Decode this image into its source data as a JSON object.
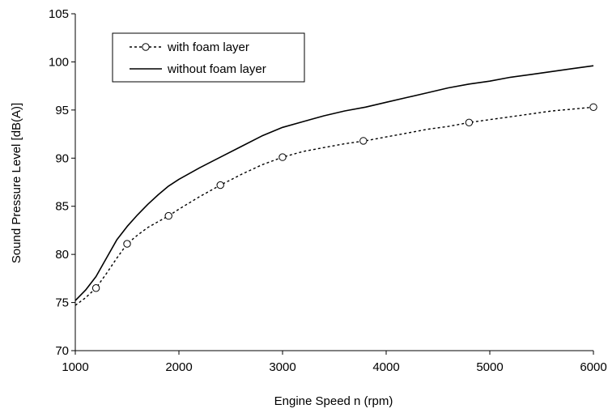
{
  "chart_data": {
    "type": "line",
    "title": "",
    "xlabel": "Engine Speed n (rpm)",
    "ylabel": "Sound Pressure Level [dB(A)]",
    "xlim": [
      1000,
      6000
    ],
    "ylim": [
      70,
      105
    ],
    "xticks": [
      1000,
      2000,
      3000,
      4000,
      5000,
      6000
    ],
    "yticks": [
      70,
      75,
      80,
      85,
      90,
      95,
      100,
      105
    ],
    "grid": false,
    "legend_position": "top-left",
    "series": [
      {
        "name": "with foam layer",
        "style": "dotted-with-circle-markers",
        "color": "#000000",
        "x": [
          1000,
          1100,
          1200,
          1300,
          1400,
          1500,
          1600,
          1700,
          1800,
          1900,
          2000,
          2200,
          2400,
          2600,
          2800,
          3000,
          3200,
          3400,
          3600,
          3800,
          4000,
          4200,
          4400,
          4600,
          4800,
          5000,
          5200,
          5400,
          5600,
          5800,
          6000
        ],
        "y": [
          74.7,
          75.5,
          76.5,
          78.0,
          79.6,
          81.1,
          82.0,
          82.8,
          83.4,
          84.0,
          84.7,
          86.0,
          87.2,
          88.3,
          89.3,
          90.1,
          90.7,
          91.1,
          91.5,
          91.8,
          92.2,
          92.6,
          93.0,
          93.3,
          93.7,
          94.0,
          94.3,
          94.6,
          94.9,
          95.1,
          95.3
        ],
        "marker_x": [
          1200,
          1500,
          1900,
          2400,
          3000,
          3780,
          4800,
          6000
        ],
        "marker_y": [
          76.5,
          81.1,
          84.0,
          87.2,
          90.1,
          91.8,
          93.7,
          95.3
        ]
      },
      {
        "name": "without foam layer",
        "style": "solid",
        "color": "#000000",
        "x": [
          1000,
          1100,
          1200,
          1300,
          1400,
          1500,
          1600,
          1700,
          1800,
          1900,
          2000,
          2200,
          2400,
          2600,
          2800,
          3000,
          3200,
          3400,
          3600,
          3800,
          4000,
          4200,
          4400,
          4600,
          4800,
          5000,
          5200,
          5400,
          5600,
          5800,
          6000
        ],
        "y": [
          75.2,
          76.3,
          77.7,
          79.6,
          81.5,
          82.9,
          84.1,
          85.2,
          86.2,
          87.1,
          87.8,
          89.0,
          90.1,
          91.2,
          92.3,
          93.2,
          93.8,
          94.4,
          94.9,
          95.3,
          95.8,
          96.3,
          96.8,
          97.3,
          97.7,
          98.0,
          98.4,
          98.7,
          99.0,
          99.3,
          99.6
        ]
      }
    ]
  }
}
